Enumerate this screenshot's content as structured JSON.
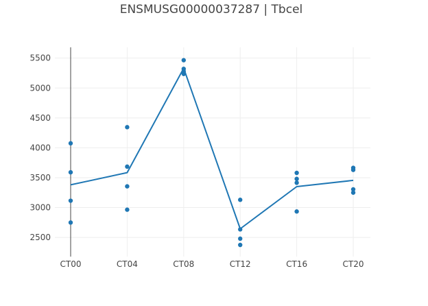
{
  "chart_data": {
    "type": "line",
    "title": "ENSMUSG00000037287 | Tbcel",
    "xlabel": "",
    "ylabel": "",
    "categories": [
      "CT00",
      "CT04",
      "CT08",
      "CT12",
      "CT16",
      "CT20"
    ],
    "ylim": [
      2180,
      5680
    ],
    "yticks": [
      2500,
      3000,
      3500,
      4000,
      4500,
      5000,
      5500
    ],
    "grid": true,
    "legend": "none",
    "line_color": "#1f77b4",
    "grid_color": "#eeeeee",
    "axis_color": "#444444",
    "series": [
      {
        "type": "line",
        "values": [
          3380,
          3585,
          5330,
          2645,
          3350,
          3455
        ]
      },
      {
        "type": "scatter",
        "points": [
          {
            "x": "CT00",
            "y": 4075
          },
          {
            "x": "CT00",
            "y": 3590
          },
          {
            "x": "CT00",
            "y": 3115
          },
          {
            "x": "CT00",
            "y": 2750
          },
          {
            "x": "CT04",
            "y": 4345
          },
          {
            "x": "CT04",
            "y": 3685
          },
          {
            "x": "CT04",
            "y": 3355
          },
          {
            "x": "CT04",
            "y": 2965
          },
          {
            "x": "CT08",
            "y": 5465
          },
          {
            "x": "CT08",
            "y": 5320
          },
          {
            "x": "CT08",
            "y": 5280
          },
          {
            "x": "CT08",
            "y": 5235
          },
          {
            "x": "CT12",
            "y": 3130
          },
          {
            "x": "CT12",
            "y": 2635
          },
          {
            "x": "CT12",
            "y": 2480
          },
          {
            "x": "CT12",
            "y": 2375
          },
          {
            "x": "CT16",
            "y": 3580
          },
          {
            "x": "CT16",
            "y": 3480
          },
          {
            "x": "CT16",
            "y": 3415
          },
          {
            "x": "CT16",
            "y": 2935
          },
          {
            "x": "CT20",
            "y": 3665
          },
          {
            "x": "CT20",
            "y": 3630
          },
          {
            "x": "CT20",
            "y": 3305
          },
          {
            "x": "CT20",
            "y": 3250
          }
        ]
      }
    ]
  }
}
